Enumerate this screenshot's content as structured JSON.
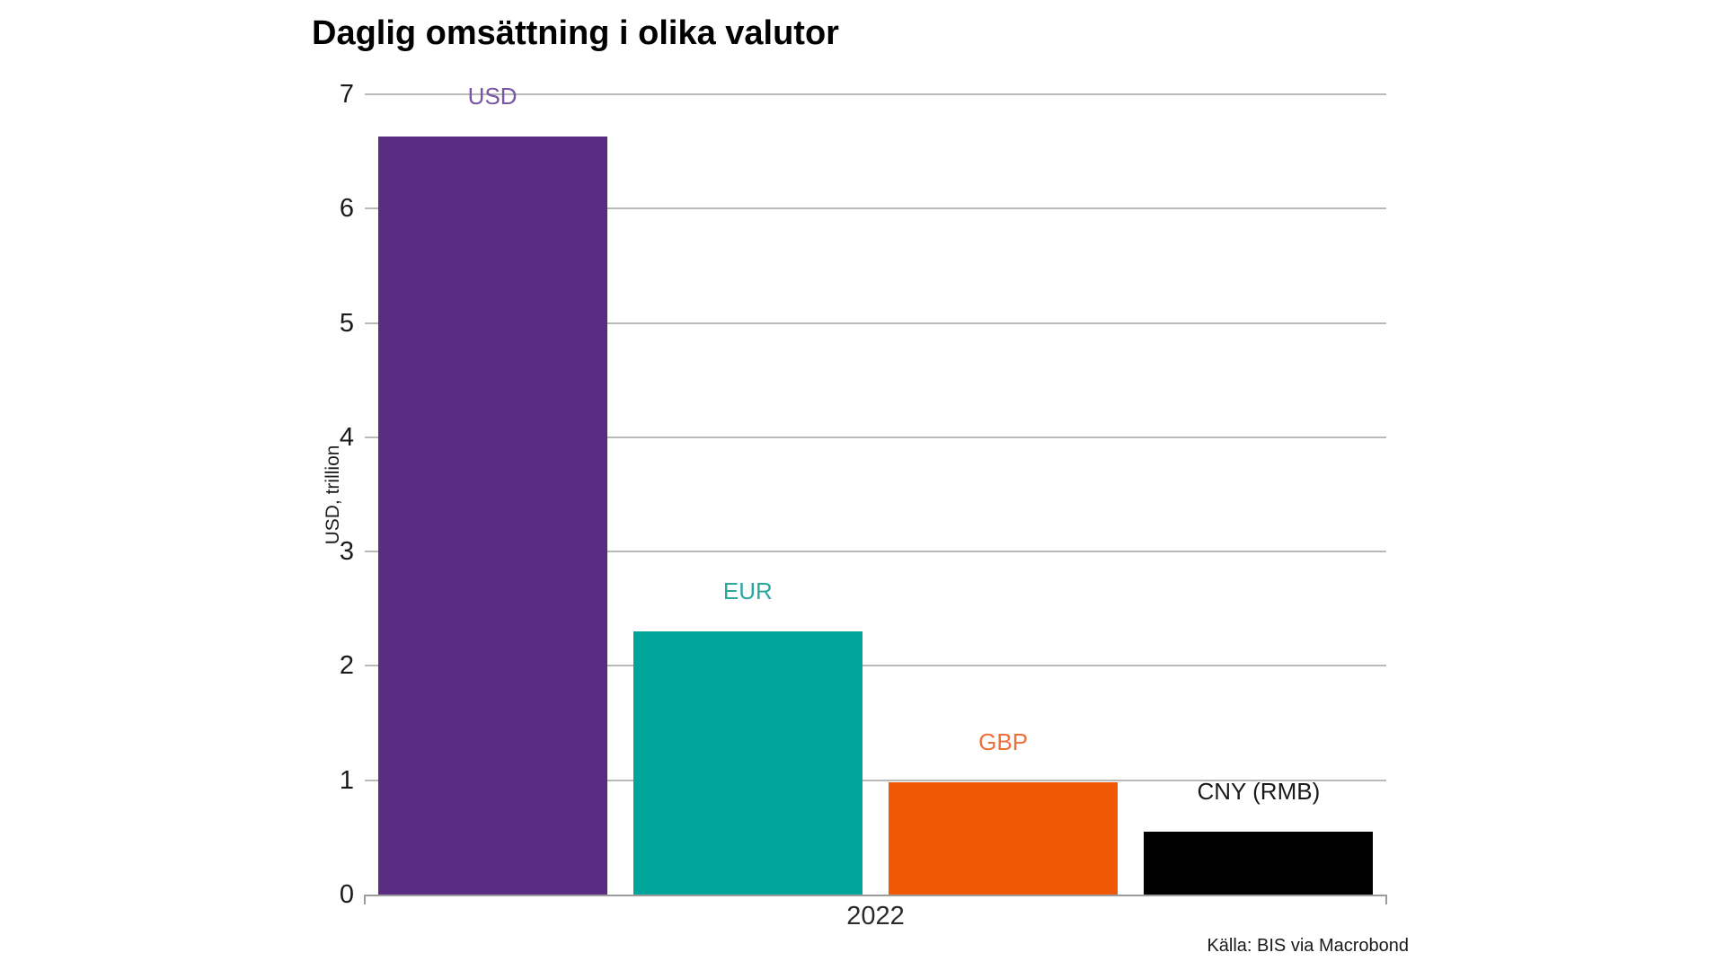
{
  "title": "Daglig omsättning i olika valutor",
  "source": "Källa: BIS via Macrobond",
  "chart_data": {
    "type": "bar",
    "title": "Daglig omsättning i olika valutor",
    "xlabel": "2022",
    "ylabel": "USD, trillion",
    "ylim": [
      0,
      7
    ],
    "y_ticks": [
      0,
      1,
      2,
      3,
      4,
      5,
      6,
      7
    ],
    "categories": [
      "USD",
      "EUR",
      "GBP",
      "CNY (RMB)"
    ],
    "values": [
      6.63,
      2.3,
      0.98,
      0.55
    ],
    "bar_colors": [
      "#5b2d82",
      "#00a49a",
      "#f15805",
      "#000000"
    ],
    "label_colors": [
      "#7a55a3",
      "#2aa8a0",
      "#f0703c",
      "#1a1a1a"
    ],
    "grid": "horizontal gridlines on",
    "legend": "none, category labels above bars",
    "gridline_color": "#b9b9b9",
    "axis_color": "#9c9c9c"
  }
}
